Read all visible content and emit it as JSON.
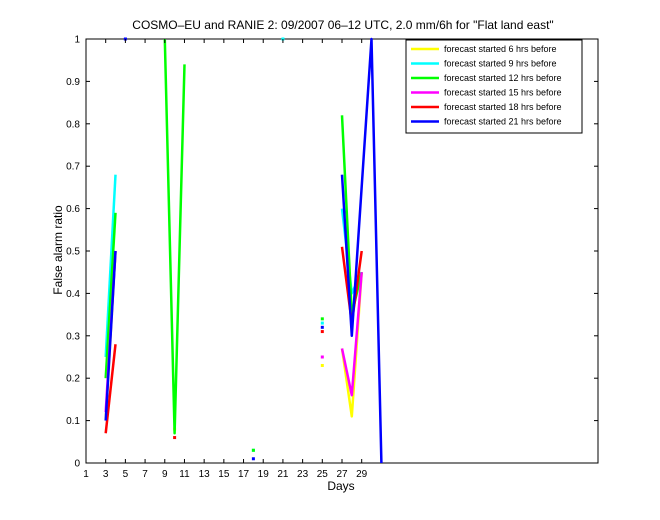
{
  "chart_data": {
    "type": "line",
    "title": "COSMO–EU and RANIE 2: 09/2007 06–12 UTC, 2.0 mm/6h for \"Flat land east\"",
    "xlabel": "Days",
    "ylabel": "False alarm ratio",
    "xlim": [
      1,
      53
    ],
    "ylim": [
      0,
      1
    ],
    "xticks": [
      1,
      3,
      5,
      7,
      9,
      11,
      13,
      15,
      17,
      19,
      21,
      23,
      25,
      27,
      29
    ],
    "yticks": [
      0,
      0.1,
      0.2,
      0.3,
      0.4,
      0.5,
      0.6,
      0.7,
      0.8,
      0.9,
      1
    ],
    "ytick_labels": [
      "0",
      "0.1",
      "0.2",
      "0.3",
      "0.4",
      "0.5",
      "0.6",
      "0.7",
      "0.8",
      "0.9",
      "1"
    ],
    "grid": false,
    "legend_position": "top-right",
    "series": [
      {
        "name": "forecast started 6 hrs before",
        "color": "#ffff00",
        "segments": [
          [
            [
              3,
              0.1
            ],
            [
              4,
              0.5
            ]
          ],
          [
            [
              27,
              0.27
            ],
            [
              28,
              0.11
            ],
            [
              29,
              0.45
            ]
          ]
        ],
        "points": [
          [
            10,
            0.08
          ],
          [
            25,
            0.23
          ]
        ]
      },
      {
        "name": "forecast started 9 hrs before",
        "color": "#00ffff",
        "segments": [
          [
            [
              3,
              0.25
            ],
            [
              4,
              0.68
            ]
          ],
          [
            [
              27,
              0.6
            ],
            [
              28,
              0.4
            ],
            [
              29,
              0.45
            ]
          ]
        ],
        "points": [
          [
            21,
            1.0
          ],
          [
            18,
            0.03
          ],
          [
            25,
            0.33
          ]
        ]
      },
      {
        "name": "forecast started 12 hrs before",
        "color": "#00ff00",
        "segments": [
          [
            [
              3,
              0.2
            ],
            [
              4,
              0.59
            ]
          ],
          [
            [
              9,
              1.0
            ],
            [
              10,
              0.07
            ],
            [
              11,
              0.94
            ]
          ],
          [
            [
              27,
              0.82
            ],
            [
              28,
              0.35
            ],
            [
              29,
              0.45
            ]
          ]
        ],
        "points": [
          [
            18,
            0.03
          ],
          [
            25,
            0.34
          ]
        ]
      },
      {
        "name": "forecast started 15 hrs before",
        "color": "#ff00ff",
        "segments": [
          [
            [
              3,
              0.12
            ],
            [
              4,
              0.5
            ]
          ],
          [
            [
              27,
              0.27
            ],
            [
              28,
              0.16
            ],
            [
              29,
              0.45
            ]
          ]
        ],
        "points": [
          [
            25,
            0.25
          ]
        ]
      },
      {
        "name": "forecast started 18 hrs before",
        "color": "#ff0000",
        "segments": [
          [
            [
              3,
              0.07
            ],
            [
              4,
              0.28
            ]
          ],
          [
            [
              27,
              0.51
            ],
            [
              28,
              0.33
            ],
            [
              29,
              0.5
            ]
          ]
        ],
        "points": [
          [
            10,
            0.06
          ],
          [
            25,
            0.31
          ]
        ]
      },
      {
        "name": "forecast started 21 hrs before",
        "color": "#0000ff",
        "segments": [
          [
            [
              3,
              0.1
            ],
            [
              4,
              0.5
            ]
          ],
          [
            [
              27,
              0.68
            ],
            [
              28,
              0.3
            ],
            [
              30,
              1.0
            ],
            [
              31,
              0.0
            ]
          ]
        ],
        "points": [
          [
            5,
            1.0
          ],
          [
            18,
            0.01
          ],
          [
            25,
            0.32
          ]
        ]
      }
    ]
  }
}
